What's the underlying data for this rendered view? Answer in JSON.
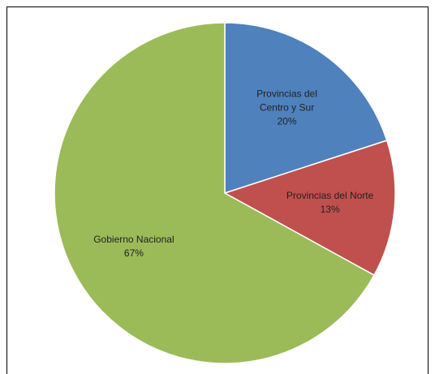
{
  "chart_data": {
    "type": "pie",
    "categories": [
      "Provincias del Centro y Sur",
      "Provincias del Norte",
      "Gobierno Nacional"
    ],
    "values": [
      20,
      13,
      67
    ],
    "value_labels": [
      "20%",
      "13%",
      "67%"
    ],
    "colors": [
      "#4f81bd",
      "#c0504d",
      "#9bbb59"
    ]
  }
}
